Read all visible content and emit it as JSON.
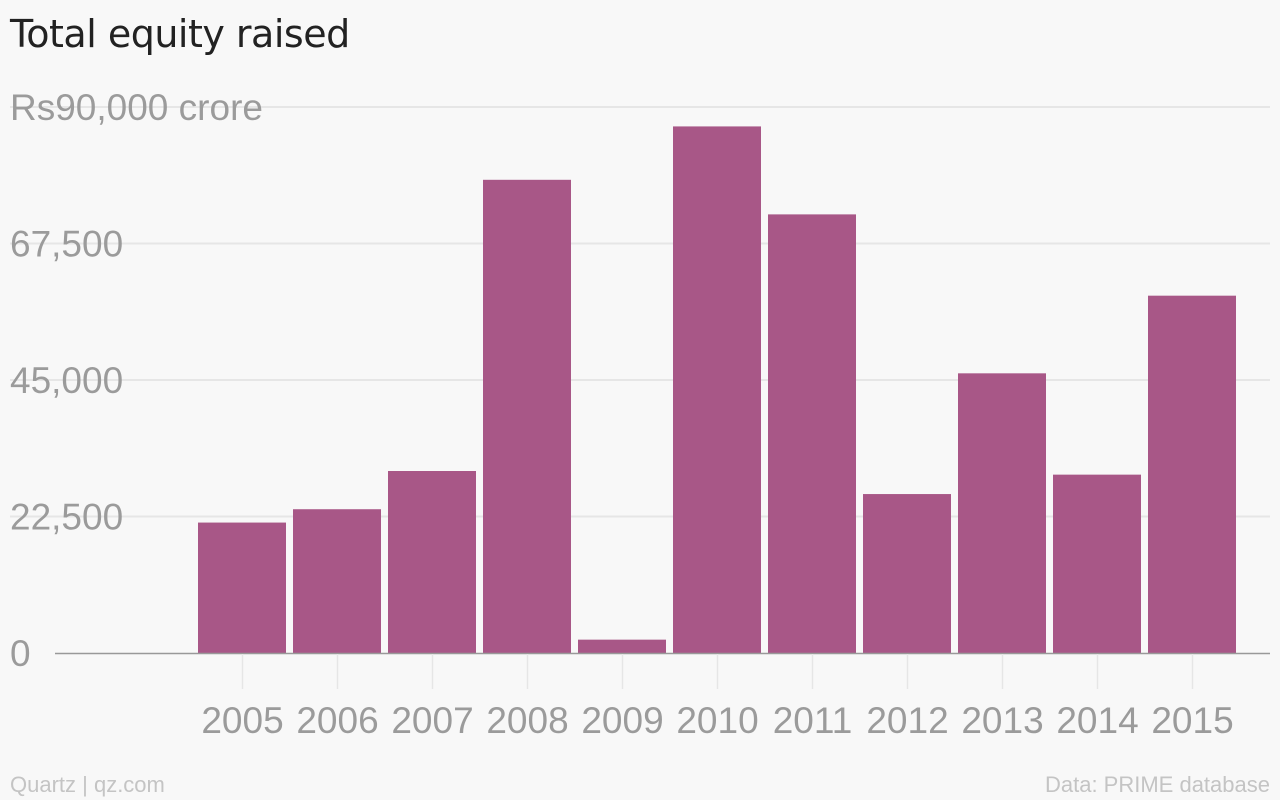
{
  "title": "Total equity raised",
  "source": "Data: PRIME database",
  "credit": "Quartz | qz.com",
  "colors": {
    "bar": "#a85787",
    "grid": "#e6e6e6",
    "axis": "#999999",
    "tick_text": "#9b9b9b",
    "title": "#222222",
    "footer": "#c4c4c4",
    "background": "#f8f8f8"
  },
  "chart_data": {
    "type": "bar",
    "title": "Total equity raised",
    "xlabel": "",
    "ylabel": "",
    "y_unit_prefix": "Rs",
    "y_unit_suffix": " crore",
    "ylim": [
      0,
      90000
    ],
    "yticks": [
      0,
      22500,
      45000,
      67500,
      90000
    ],
    "ytick_labels": [
      "0",
      "22,500",
      "45,000",
      "67,500",
      "Rs90,000 crore"
    ],
    "grid": true,
    "legend": "none",
    "categories": [
      "2005",
      "2006",
      "2007",
      "2008",
      "2009",
      "2010",
      "2011",
      "2012",
      "2013",
      "2014",
      "2015"
    ],
    "values": [
      21500,
      23700,
      30000,
      78000,
      2200,
      86800,
      72300,
      26200,
      46100,
      29400,
      58900
    ]
  }
}
